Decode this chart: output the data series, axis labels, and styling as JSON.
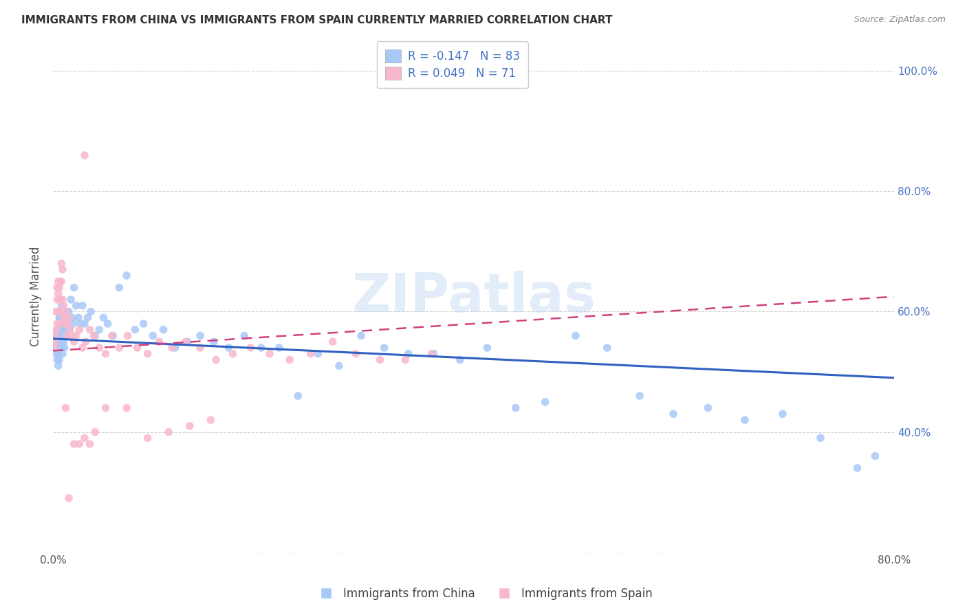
{
  "title": "IMMIGRANTS FROM CHINA VS IMMIGRANTS FROM SPAIN CURRENTLY MARRIED CORRELATION CHART",
  "source": "Source: ZipAtlas.com",
  "ylabel_label": "Currently Married",
  "xlim": [
    0.0,
    0.8
  ],
  "ylim": [
    0.2,
    1.05
  ],
  "xtick_positions": [
    0.0,
    0.1,
    0.2,
    0.3,
    0.4,
    0.5,
    0.6,
    0.7,
    0.8
  ],
  "xticklabels": [
    "0.0%",
    "",
    "",
    "",
    "",
    "",
    "",
    "",
    "80.0%"
  ],
  "ytick_positions": [
    0.2,
    0.4,
    0.6,
    0.8,
    1.0
  ],
  "yticklabels_right": [
    "",
    "40.0%",
    "60.0%",
    "80.0%",
    "100.0%"
  ],
  "china_R": -0.147,
  "china_N": 83,
  "spain_R": 0.049,
  "spain_N": 71,
  "china_color": "#a8c8f8",
  "spain_color": "#f8b8cc",
  "china_line_color": "#3060c0",
  "spain_line_color": "#d04080",
  "watermark": "ZIPatlas",
  "legend_china_label": "Immigrants from China",
  "legend_spain_label": "Immigrants from Spain",
  "china_x": [
    0.002,
    0.003,
    0.003,
    0.004,
    0.004,
    0.004,
    0.005,
    0.005,
    0.005,
    0.006,
    0.006,
    0.006,
    0.006,
    0.007,
    0.007,
    0.007,
    0.008,
    0.008,
    0.008,
    0.009,
    0.009,
    0.01,
    0.01,
    0.01,
    0.011,
    0.011,
    0.012,
    0.012,
    0.013,
    0.014,
    0.015,
    0.016,
    0.017,
    0.018,
    0.019,
    0.02,
    0.022,
    0.024,
    0.026,
    0.028,
    0.03,
    0.033,
    0.036,
    0.04,
    0.044,
    0.048,
    0.052,
    0.057,
    0.063,
    0.07,
    0.078,
    0.086,
    0.095,
    0.105,
    0.116,
    0.128,
    0.14,
    0.153,
    0.167,
    0.182,
    0.198,
    0.215,
    0.233,
    0.252,
    0.272,
    0.293,
    0.315,
    0.338,
    0.362,
    0.387,
    0.413,
    0.44,
    0.468,
    0.497,
    0.527,
    0.558,
    0.59,
    0.623,
    0.658,
    0.694,
    0.73,
    0.765,
    0.782
  ],
  "china_y": [
    0.54,
    0.53,
    0.56,
    0.55,
    0.52,
    0.57,
    0.53,
    0.56,
    0.51,
    0.54,
    0.56,
    0.59,
    0.52,
    0.55,
    0.57,
    0.59,
    0.56,
    0.54,
    0.61,
    0.53,
    0.57,
    0.58,
    0.55,
    0.6,
    0.54,
    0.57,
    0.58,
    0.56,
    0.59,
    0.58,
    0.6,
    0.57,
    0.62,
    0.59,
    0.58,
    0.64,
    0.61,
    0.59,
    0.58,
    0.61,
    0.58,
    0.59,
    0.6,
    0.56,
    0.57,
    0.59,
    0.58,
    0.56,
    0.64,
    0.66,
    0.57,
    0.58,
    0.56,
    0.57,
    0.54,
    0.55,
    0.56,
    0.55,
    0.54,
    0.56,
    0.54,
    0.54,
    0.46,
    0.53,
    0.51,
    0.56,
    0.54,
    0.53,
    0.53,
    0.52,
    0.54,
    0.44,
    0.45,
    0.56,
    0.54,
    0.46,
    0.43,
    0.44,
    0.42,
    0.43,
    0.39,
    0.34,
    0.36
  ],
  "spain_x": [
    0.001,
    0.002,
    0.002,
    0.003,
    0.003,
    0.004,
    0.004,
    0.004,
    0.005,
    0.005,
    0.005,
    0.006,
    0.006,
    0.007,
    0.007,
    0.007,
    0.008,
    0.008,
    0.009,
    0.009,
    0.01,
    0.01,
    0.011,
    0.012,
    0.013,
    0.014,
    0.015,
    0.016,
    0.018,
    0.02,
    0.022,
    0.025,
    0.028,
    0.031,
    0.035,
    0.039,
    0.044,
    0.05,
    0.056,
    0.063,
    0.071,
    0.08,
    0.09,
    0.101,
    0.113,
    0.126,
    0.14,
    0.155,
    0.171,
    0.188,
    0.206,
    0.225,
    0.245,
    0.266,
    0.288,
    0.311,
    0.335,
    0.36,
    0.05,
    0.07,
    0.09,
    0.11,
    0.13,
    0.15,
    0.02,
    0.025,
    0.03,
    0.035,
    0.04,
    0.012,
    0.015
  ],
  "spain_y": [
    0.54,
    0.56,
    0.55,
    0.6,
    0.57,
    0.62,
    0.58,
    0.64,
    0.63,
    0.6,
    0.65,
    0.58,
    0.64,
    0.6,
    0.62,
    0.65,
    0.65,
    0.68,
    0.62,
    0.67,
    0.61,
    0.59,
    0.58,
    0.6,
    0.56,
    0.58,
    0.59,
    0.57,
    0.56,
    0.55,
    0.56,
    0.57,
    0.54,
    0.55,
    0.57,
    0.56,
    0.54,
    0.53,
    0.56,
    0.54,
    0.56,
    0.54,
    0.53,
    0.55,
    0.54,
    0.55,
    0.54,
    0.52,
    0.53,
    0.54,
    0.53,
    0.52,
    0.53,
    0.55,
    0.53,
    0.52,
    0.52,
    0.53,
    0.44,
    0.44,
    0.39,
    0.4,
    0.41,
    0.42,
    0.38,
    0.38,
    0.39,
    0.38,
    0.4,
    0.44,
    0.29
  ],
  "spain_outlier_x": [
    0.03
  ],
  "spain_outlier_y": [
    0.86
  ],
  "china_trend_x0": 0.0,
  "china_trend_y0": 0.555,
  "china_trend_x1": 0.8,
  "china_trend_y1": 0.49,
  "spain_trend_x0": 0.0,
  "spain_trend_y0": 0.535,
  "spain_trend_x1": 0.8,
  "spain_trend_y1": 0.625
}
